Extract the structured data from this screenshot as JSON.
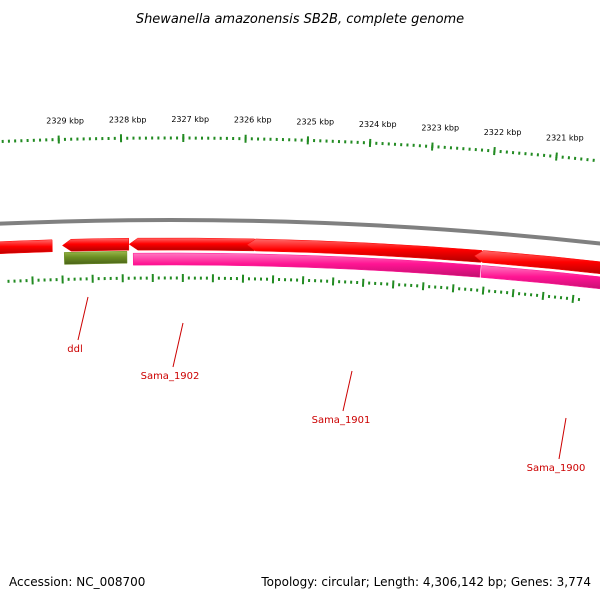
{
  "title": "Shewanella amazonensis SB2B, complete genome",
  "footer": {
    "accession": "Accession: NC_008700",
    "summary": "Topology: circular; Length: 4,306,142 bp; Genes: 3,774"
  },
  "ruler_labels": [
    "2329 kbp",
    "2328 kbp",
    "2327 kbp",
    "2326 kbp",
    "2325 kbp",
    "2324 kbp",
    "2323 kbp",
    "2322 kbp",
    "2321 kbp"
  ],
  "genes": [
    {
      "label": "",
      "color": "#ff0000",
      "strand": "forward"
    },
    {
      "label": "",
      "color": "#ff0000",
      "strand": "forward"
    },
    {
      "label": "",
      "color": "#ff0000",
      "strand": "forward"
    },
    {
      "label": "",
      "color": "#ff0000",
      "strand": "forward"
    },
    {
      "label": "",
      "color": "#ff0000",
      "strand": "forward"
    },
    {
      "label": "ddl",
      "color": "#6b8e23",
      "strand": "reverse"
    },
    {
      "label": "Sama_1902",
      "color": "#ff1493",
      "strand": "reverse"
    },
    {
      "label": "Sama_1901",
      "color": "#ff1493",
      "strand": "reverse"
    },
    {
      "label": "Sama_1900",
      "color": "#ff1493",
      "strand": "reverse"
    }
  ],
  "colors": {
    "backbone": "#808080",
    "tick": "#228b22",
    "label_line": "#cc0000"
  }
}
